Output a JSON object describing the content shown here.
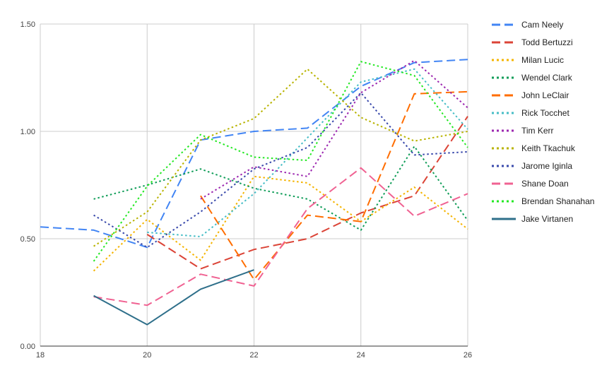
{
  "chart_data": {
    "type": "line",
    "title": "",
    "xlabel": "",
    "ylabel": "",
    "xlim": [
      18,
      26
    ],
    "ylim": [
      0,
      1.5
    ],
    "x_ticks": [
      "18",
      "20",
      "22",
      "24",
      "26"
    ],
    "y_ticks": [
      "0.00",
      "0.50",
      "1.00",
      "1.50"
    ],
    "x_tick_values": [
      18,
      20,
      22,
      24,
      26
    ],
    "y_tick_values": [
      0,
      0.5,
      1.0,
      1.5
    ],
    "grid": true,
    "legend_position": "right",
    "series": [
      {
        "name": "Cam Neely",
        "color": "#4285f4",
        "dash": "dashed",
        "points": [
          [
            18,
            0.555
          ],
          [
            19,
            0.54
          ],
          [
            20,
            0.46
          ],
          [
            21,
            0.96
          ],
          [
            22,
            1.0
          ],
          [
            23,
            1.015
          ],
          [
            24,
            1.21
          ],
          [
            25,
            1.32
          ],
          [
            26,
            1.335
          ]
        ]
      },
      {
        "name": "Todd Bertuzzi",
        "color": "#db4437",
        "dash": "dashed",
        "points": [
          [
            20,
            0.52
          ],
          [
            21,
            0.36
          ],
          [
            22,
            0.45
          ],
          [
            23,
            0.5
          ],
          [
            24,
            0.62
          ],
          [
            25,
            0.7
          ],
          [
            26,
            1.07
          ]
        ]
      },
      {
        "name": "Milan Lucic",
        "color": "#f4b400",
        "dash": "dotted",
        "points": [
          [
            19,
            0.35
          ],
          [
            20,
            0.59
          ],
          [
            21,
            0.4
          ],
          [
            22,
            0.79
          ],
          [
            23,
            0.76
          ],
          [
            24,
            0.58
          ],
          [
            25,
            0.74
          ],
          [
            26,
            0.545
          ]
        ]
      },
      {
        "name": "Wendel Clark",
        "color": "#0f9d58",
        "dash": "dotted",
        "points": [
          [
            19,
            0.685
          ],
          [
            20,
            0.75
          ],
          [
            21,
            0.825
          ],
          [
            22,
            0.735
          ],
          [
            23,
            0.685
          ],
          [
            24,
            0.54
          ],
          [
            25,
            0.93
          ],
          [
            26,
            0.585
          ]
        ]
      },
      {
        "name": "John LeClair",
        "color": "#ff6d00",
        "dash": "dashed",
        "points": [
          [
            21,
            0.7
          ],
          [
            22,
            0.31
          ],
          [
            23,
            0.61
          ],
          [
            24,
            0.58
          ],
          [
            25,
            1.175
          ],
          [
            26,
            1.185
          ]
        ]
      },
      {
        "name": "Rick Tocchet",
        "color": "#46bdc6",
        "dash": "dotted",
        "points": [
          [
            20,
            0.53
          ],
          [
            21,
            0.51
          ],
          [
            22,
            0.71
          ],
          [
            23,
            0.97
          ],
          [
            24,
            1.23
          ],
          [
            25,
            1.29
          ],
          [
            26,
            1.01
          ]
        ]
      },
      {
        "name": "Tim Kerr",
        "color": "#9c27b0",
        "dash": "dotted",
        "points": [
          [
            21,
            0.685
          ],
          [
            22,
            0.835
          ],
          [
            23,
            0.79
          ],
          [
            24,
            1.18
          ],
          [
            25,
            1.33
          ],
          [
            26,
            1.11
          ]
        ]
      },
      {
        "name": "Keith Tkachuk",
        "color": "#b8b300",
        "dash": "dotted",
        "points": [
          [
            19,
            0.465
          ],
          [
            20,
            0.625
          ],
          [
            21,
            0.96
          ],
          [
            22,
            1.06
          ],
          [
            23,
            1.29
          ],
          [
            24,
            1.065
          ],
          [
            25,
            0.955
          ],
          [
            26,
            1.0
          ]
        ]
      },
      {
        "name": "Jarome Iginla",
        "color": "#3949ab",
        "dash": "dotted",
        "points": [
          [
            19,
            0.61
          ],
          [
            20,
            0.46
          ],
          [
            21,
            0.625
          ],
          [
            22,
            0.825
          ],
          [
            23,
            0.925
          ],
          [
            24,
            1.18
          ],
          [
            25,
            0.89
          ],
          [
            26,
            0.905
          ]
        ]
      },
      {
        "name": "Shane Doan",
        "color": "#f06292",
        "dash": "dashed",
        "points": [
          [
            19,
            0.23
          ],
          [
            20,
            0.19
          ],
          [
            21,
            0.335
          ],
          [
            22,
            0.28
          ],
          [
            23,
            0.64
          ],
          [
            24,
            0.83
          ],
          [
            25,
            0.605
          ],
          [
            26,
            0.71
          ]
        ]
      },
      {
        "name": "Brendan Shanahan",
        "color": "#23e823",
        "dash": "dotted",
        "points": [
          [
            19,
            0.395
          ],
          [
            20,
            0.745
          ],
          [
            21,
            0.985
          ],
          [
            22,
            0.88
          ],
          [
            23,
            0.865
          ],
          [
            24,
            1.325
          ],
          [
            25,
            1.26
          ],
          [
            26,
            0.925
          ]
        ]
      },
      {
        "name": "Jake Virtanen",
        "color": "#2e6f8a",
        "dash": "solid",
        "points": [
          [
            19,
            0.235
          ],
          [
            20,
            0.1
          ],
          [
            21,
            0.265
          ],
          [
            22,
            0.355
          ]
        ]
      }
    ]
  }
}
